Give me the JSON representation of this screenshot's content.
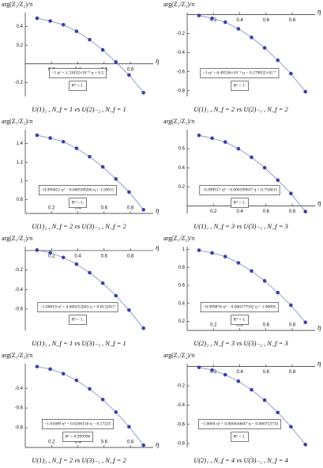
{
  "chart_data": [
    {
      "type": "scatter",
      "ylabel": "arg(Z₁/Z₂)/π",
      "xlabel": "η",
      "fit_label": "−1.η² + 1.31032×10⁻⁸ η + 0.5",
      "r2_label": "R² = 1.",
      "caption": "U(1)₂ , N_f = 1    vs    U(2)₋₂ , N_f = 1",
      "color": "#3b3fa8",
      "line_color": "#7a86c8",
      "x": [
        0.09,
        0.19,
        0.29,
        0.39,
        0.49,
        0.59,
        0.69,
        0.79,
        0.9
      ],
      "values": [
        0.49,
        0.46,
        0.42,
        0.35,
        0.26,
        0.15,
        0.02,
        -0.12,
        -0.31
      ],
      "xlim": [
        0,
        0.95
      ],
      "ylim": [
        -0.35,
        0.55
      ],
      "xticks": [
        0.2,
        0.4,
        0.6,
        0.8
      ],
      "yticks": [
        0.4,
        0.2,
        -0.2
      ],
      "x_axis_position": "zero"
    },
    {
      "type": "scatter",
      "ylabel": "arg(Z₁/Z₂)/π",
      "xlabel": "η",
      "fit_label": "−1.η² + 6.49536×10⁻⁹ η − 0.179052×10⁻⁷",
      "r2_label": "R² = 1.",
      "caption": "U(1)₁ , N_f = 2    vs    U(2)₋₁ , N_f = 2",
      "color": "#3b3fa8",
      "line_color": "#7a86c8",
      "x": [
        0.09,
        0.19,
        0.29,
        0.39,
        0.49,
        0.59,
        0.69,
        0.79,
        0.9
      ],
      "values": [
        -0.01,
        -0.04,
        -0.08,
        -0.15,
        -0.24,
        -0.35,
        -0.48,
        -0.62,
        -0.81
      ],
      "xlim": [
        0,
        0.95
      ],
      "ylim": [
        -0.86,
        0.02
      ],
      "xticks": [
        0.2,
        0.4,
        0.6,
        0.8
      ],
      "yticks": [
        -0.2,
        -0.4,
        -0.6,
        -0.8
      ],
      "x_axis_position": "zero"
    },
    {
      "type": "scatter",
      "ylabel": "arg(Z₁/Z₂)/π",
      "xlabel": "η",
      "fit_label": "−0.999452 η² − 0.000509266 η + 1.50011",
      "r2_label": "R² = 1.",
      "caption": "U(1)₂ , N_f = 2    vs    U(3)₋₂ , N_f = 2",
      "color": "#3b3fa8",
      "line_color": "#7a86c8",
      "x": [
        0.09,
        0.19,
        0.29,
        0.39,
        0.49,
        0.59,
        0.69,
        0.79,
        0.9
      ],
      "values": [
        1.49,
        1.46,
        1.42,
        1.35,
        1.26,
        1.15,
        1.02,
        0.88,
        0.69
      ],
      "xlim": [
        0,
        0.95
      ],
      "ylim": [
        0.65,
        1.55
      ],
      "xticks": [
        0.2,
        0.4,
        0.6,
        0.8
      ],
      "yticks": [
        1.4,
        1.2,
        1.0,
        0.8
      ],
      "x_axis_position": "bottom"
    },
    {
      "type": "scatter",
      "ylabel": "arg(Z₁/Z₂)/π",
      "xlabel": "η",
      "fit_label": "−0.999917 η² − 0.000199037 η + 0.750033",
      "r2_label": "R² = 1.",
      "caption": "U(1)₁ , N_f = 3    vs    U(3)₋₁ , N_f = 3",
      "color": "#3b3fa8",
      "line_color": "#7a86c8",
      "x": [
        0.09,
        0.19,
        0.29,
        0.39,
        0.49,
        0.59,
        0.69,
        0.79,
        0.9
      ],
      "values": [
        0.74,
        0.71,
        0.67,
        0.6,
        0.51,
        0.4,
        0.27,
        0.13,
        -0.06
      ],
      "xlim": [
        0,
        0.95
      ],
      "ylim": [
        -0.08,
        0.8
      ],
      "xticks": [
        0.2,
        0.4,
        0.6,
        0.8
      ],
      "yticks": [
        0.6,
        0.4,
        0.2
      ],
      "x_axis_position": "zero"
    },
    {
      "type": "scatter",
      "ylabel": "arg(Z₁/Z₂)/π",
      "xlabel": "η",
      "fit_label": "−1.00019 η² + 0.000252043 η + 0.0132617",
      "r2_label": "R² = 1.",
      "caption": "U(1)₃ , N_f = 1    vs    U(3)₋₃ , N_f = 1",
      "color": "#3b3fa8",
      "line_color": "#7a86c8",
      "x": [
        0.09,
        0.19,
        0.29,
        0.39,
        0.49,
        0.59,
        0.69,
        0.79,
        0.9
      ],
      "values": [
        0.005,
        -0.023,
        -0.071,
        -0.139,
        -0.227,
        -0.335,
        -0.463,
        -0.611,
        -0.797
      ],
      "xlim": [
        0,
        0.95
      ],
      "ylim": [
        -0.82,
        0.04
      ],
      "xticks": [
        0.2,
        0.4,
        0.6,
        0.8
      ],
      "yticks": [
        -0.2,
        -0.4,
        -0.6
      ],
      "x_axis_position": "zero"
    },
    {
      "type": "scatter",
      "ylabel": "arg(Z₁/Z₂)/π",
      "xlabel": "η",
      "fit_label": "−0.999876 η² − 0.000177592 η + 1.00005",
      "r2_label": "R² = 1.",
      "caption": "U(2)₂ , N_f = 3    vs    U(3)₋₂ , N_f = 3",
      "color": "#3b3fa8",
      "line_color": "#7a86c8",
      "x": [
        0.09,
        0.19,
        0.29,
        0.39,
        0.49,
        0.59,
        0.69,
        0.79,
        0.9
      ],
      "values": [
        0.99,
        0.96,
        0.92,
        0.85,
        0.76,
        0.65,
        0.52,
        0.38,
        0.19
      ],
      "xlim": [
        0,
        0.95
      ],
      "ylim": [
        0.1,
        1.03
      ],
      "xticks": [
        0.2,
        0.4,
        0.6,
        0.8
      ],
      "yticks": [
        1.0,
        0.8,
        0.6,
        0.4,
        0.2
      ],
      "x_axis_position": "bottom"
    },
    {
      "type": "scatter",
      "ylabel": "arg(Z₁/Z₂)/π",
      "xlabel": "η",
      "fit_label": "−1.01689 η² + 0.0206156 η − 0.17225",
      "r2_label": "R² = 0.999996",
      "caption": "U(1)₃ , N_f = 2    vs    U(3)₋₁ , N_f = 2",
      "color": "#3b3fa8",
      "line_color": "#7a86c8",
      "x": [
        0.09,
        0.19,
        0.29,
        0.39,
        0.49,
        0.59,
        0.69,
        0.79,
        0.9
      ],
      "values": [
        -0.18,
        -0.205,
        -0.252,
        -0.319,
        -0.406,
        -0.514,
        -0.642,
        -0.79,
        -0.977
      ],
      "xlim": [
        0,
        0.95
      ],
      "ylim": [
        -1.0,
        -0.15
      ],
      "xticks": [
        0.2,
        0.4,
        0.6,
        0.8
      ],
      "yticks": [
        -0.4,
        -0.6,
        -0.8
      ],
      "x_axis_position": "bottom"
    },
    {
      "type": "scatter",
      "ylabel": "arg(Z₁/Z₂)/π",
      "xlabel": "η",
      "fit_label": "−1.0004 η² + 0.000444647 η − 0.000753733",
      "r2_label": "R² = 1.",
      "caption": "U(2)₁ , N_f = 4    vs    U(3)₋₁ , N_f = 4",
      "color": "#3b3fa8",
      "line_color": "#7a86c8",
      "x": [
        0.09,
        0.19,
        0.29,
        0.39,
        0.49,
        0.59,
        0.69,
        0.79,
        0.9
      ],
      "values": [
        -0.009,
        -0.037,
        -0.085,
        -0.153,
        -0.241,
        -0.349,
        -0.477,
        -0.625,
        -0.81
      ],
      "xlim": [
        0,
        0.95
      ],
      "ylim": [
        -0.84,
        0.03
      ],
      "xticks": [
        0.2,
        0.4,
        0.6,
        0.8
      ],
      "yticks": [
        -0.2,
        -0.4,
        -0.6,
        -0.8
      ],
      "x_axis_position": "zero"
    }
  ]
}
